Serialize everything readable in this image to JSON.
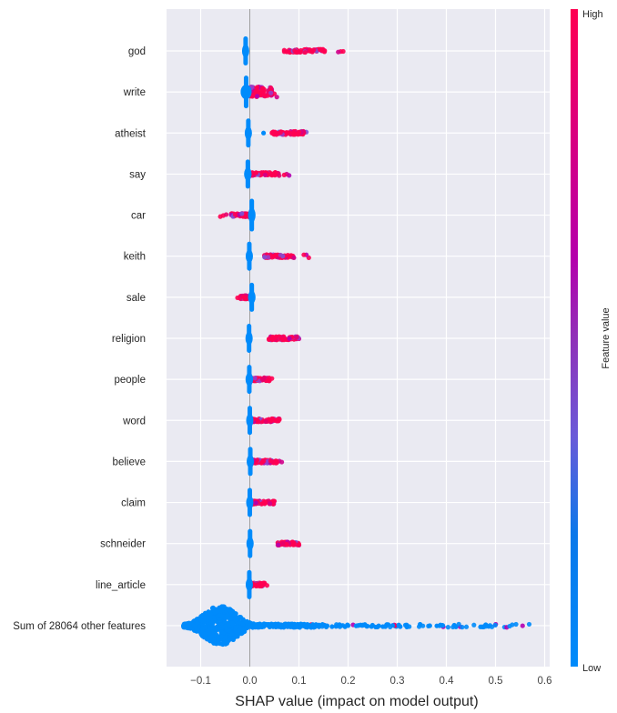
{
  "chart_data": {
    "type": "scatter",
    "subtype": "shap-beeswarm",
    "title": "",
    "xlabel": "SHAP value (impact on model output)",
    "ylabel": "",
    "xlim": [
      -0.17,
      0.605
    ],
    "xticks": [
      -0.1,
      0.0,
      0.1,
      0.2,
      0.3,
      0.4,
      0.5,
      0.6
    ],
    "xtick_labels": [
      "−0.1",
      "0.0",
      "0.1",
      "0.2",
      "0.3",
      "0.4",
      "0.5",
      "0.6"
    ],
    "grid": true,
    "zero_line": true,
    "colorbar": {
      "label": "Feature value",
      "high_label": "High",
      "low_label": "Low",
      "high_color": "#ff0052",
      "mid_color": "#b200b0",
      "low_color": "#008bfb",
      "placement": "right"
    },
    "colors": {
      "background": "#eaeaf2",
      "grid": "#ffffff",
      "zero_line": "#a0a0a0"
    },
    "features": [
      {
        "name": "god",
        "low_values": {
          "min": -0.012,
          "max": -0.005,
          "height": 0.8
        },
        "high_values": {
          "min": 0.07,
          "max": 0.19,
          "dense_max": 0.155
        }
      },
      {
        "name": "write",
        "low_values": {
          "min": -0.015,
          "max": 0.0,
          "height": 0.9
        },
        "high_values": {
          "min": 0.0,
          "max": 0.055,
          "dense_max": 0.045,
          "spread": 0.25
        }
      },
      {
        "name": "atheist",
        "low_values": {
          "min": -0.005,
          "max": -0.001,
          "height": 0.8
        },
        "outlier_low": 0.028,
        "high_values": {
          "min": 0.045,
          "max": 0.115,
          "dense_max": 0.11
        }
      },
      {
        "name": "say",
        "low_values": {
          "min": -0.008,
          "max": 0.0,
          "height": 0.8
        },
        "high_values": {
          "min": 0.002,
          "max": 0.08,
          "dense_max": 0.06
        }
      },
      {
        "name": "car",
        "low_values": {
          "min": 0.0,
          "max": 0.008,
          "height": 0.9
        },
        "high_values": {
          "min": -0.06,
          "max": 0.0,
          "dense_min": -0.04
        }
      },
      {
        "name": "keith",
        "low_values": {
          "min": -0.003,
          "max": 0.001,
          "height": 0.8
        },
        "high_values": {
          "min": 0.03,
          "max": 0.12,
          "dense_max": 0.09
        }
      },
      {
        "name": "sale",
        "low_values": {
          "min": 0.0,
          "max": 0.008,
          "height": 0.8
        },
        "high_values": {
          "min": -0.025,
          "max": -0.005,
          "dense_min": -0.02
        }
      },
      {
        "name": "religion",
        "low_values": {
          "min": -0.003,
          "max": 0.0,
          "height": 0.8
        },
        "high_values": {
          "min": 0.038,
          "max": 0.1,
          "dense_max": 0.1
        }
      },
      {
        "name": "people",
        "low_values": {
          "min": -0.005,
          "max": 0.003,
          "height": 0.8
        },
        "high_values": {
          "min": 0.0,
          "max": 0.045,
          "dense_max": 0.04
        }
      },
      {
        "name": "word",
        "low_values": {
          "min": -0.002,
          "max": 0.002,
          "height": 0.8
        },
        "high_values": {
          "min": 0.002,
          "max": 0.06,
          "dense_max": 0.06
        }
      },
      {
        "name": "believe",
        "low_values": {
          "min": -0.001,
          "max": 0.003,
          "height": 0.8
        },
        "high_values": {
          "min": 0.003,
          "max": 0.065,
          "dense_max": 0.055
        }
      },
      {
        "name": "claim",
        "low_values": {
          "min": -0.002,
          "max": 0.002,
          "height": 0.8
        },
        "high_values": {
          "min": 0.003,
          "max": 0.05,
          "dense_max": 0.05
        }
      },
      {
        "name": "schneider",
        "low_values": {
          "min": -0.001,
          "max": 0.002,
          "height": 0.8
        },
        "high_values": {
          "min": 0.057,
          "max": 0.1,
          "dense_max": 0.1
        }
      },
      {
        "name": "line_article",
        "low_values": {
          "min": -0.004,
          "max": 0.002,
          "height": 0.8
        },
        "high_values": {
          "min": 0.002,
          "max": 0.035,
          "dense_max": 0.03
        }
      },
      {
        "name": "Sum of 28064 other features",
        "low_values": {
          "min": -0.135,
          "max": 0.08,
          "peak": -0.06,
          "height": 0.75
        },
        "high_values": {
          "min": 0.05,
          "max": 0.57,
          "sparse": true
        }
      }
    ]
  }
}
